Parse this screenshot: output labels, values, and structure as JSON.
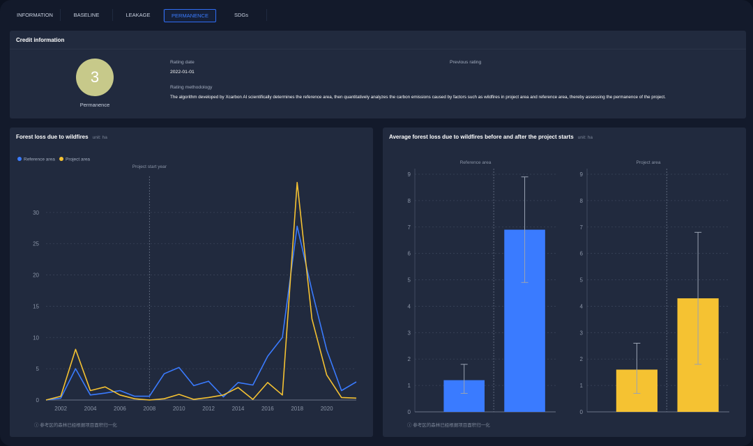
{
  "tabs": [
    {
      "label": "INFORMATION",
      "active": false
    },
    {
      "label": "BASELINE",
      "active": false
    },
    {
      "label": "LEAKAGE",
      "active": false
    },
    {
      "label": "PERMANENCE",
      "active": true
    },
    {
      "label": "SDGs",
      "active": false
    }
  ],
  "credit": {
    "title": "Credit information",
    "score": "3",
    "score_label": "Permanence",
    "rating_date_label": "Rating date",
    "rating_date": "2022-01-01",
    "previous_rating_label": "Previous rating",
    "methodology_label": "Rating methodology",
    "methodology_text": "The algorithm developed by Xcarbon AI scientifically determines the reference area, then quantitatively analyzes the carbon emissions caused by factors such as wildfires in project area and reference area, thereby assessing the permanence of the project."
  },
  "forest_panel": {
    "title": "Forest loss due to wildfires",
    "unit": "unit: ha",
    "footnote": "ⓘ 参考区的森林已经根据项目面积归一化"
  },
  "avg_panel": {
    "title": "Average forest loss due to wildfires before and after the project starts",
    "unit": "unit: ha",
    "footnote": "ⓘ 参考区的森林已经根据项目面积归一化"
  },
  "colors": {
    "reference": "#3a7bff",
    "project": "#f5c232"
  },
  "chart_data": [
    {
      "type": "line",
      "x": [
        2001,
        2002,
        2003,
        2004,
        2005,
        2006,
        2007,
        2008,
        2009,
        2010,
        2011,
        2012,
        2013,
        2014,
        2015,
        2016,
        2017,
        2018,
        2019,
        2020,
        2021,
        2022
      ],
      "xticks": [
        2002,
        2004,
        2006,
        2008,
        2010,
        2012,
        2014,
        2016,
        2018,
        2020
      ],
      "yticks": [
        0,
        5,
        10,
        15,
        20,
        25,
        30
      ],
      "ylim": [
        0,
        35
      ],
      "annotation": {
        "x": 2008,
        "label": "Project start year"
      },
      "series": [
        {
          "name": "Reference area",
          "color": "#3a7bff",
          "values": [
            0,
            0.3,
            5,
            0.8,
            1.1,
            1.5,
            0.6,
            0.6,
            4.2,
            5.2,
            2.3,
            3,
            0.5,
            2.8,
            2.4,
            7,
            10,
            27.8,
            17.5,
            8,
            1.5,
            2.9
          ]
        },
        {
          "name": "Project area",
          "color": "#f5c232",
          "values": [
            0,
            0.6,
            8.1,
            1.5,
            2.1,
            0.8,
            0.2,
            0,
            0.2,
            0.9,
            0.1,
            0.4,
            0.8,
            2,
            0.1,
            2.8,
            0.8,
            34.8,
            13,
            4,
            0.4,
            0.3
          ]
        }
      ]
    },
    {
      "type": "bar",
      "title": "Reference area",
      "yticks": [
        0,
        1,
        2,
        3,
        4,
        5,
        6,
        7,
        8,
        9
      ],
      "ylim": [
        0,
        9
      ],
      "color": "#3a7bff",
      "values": [
        1.2,
        6.9
      ],
      "errors": [
        [
          0.7,
          1.8
        ],
        [
          4.9,
          8.9
        ]
      ]
    },
    {
      "type": "bar",
      "title": "Project area",
      "yticks": [
        0,
        1,
        2,
        3,
        4,
        5,
        6,
        7,
        8,
        9
      ],
      "ylim": [
        0,
        9
      ],
      "color": "#f5c232",
      "values": [
        1.6,
        4.3
      ],
      "errors": [
        [
          0.7,
          2.6
        ],
        [
          1.8,
          6.8
        ]
      ]
    }
  ]
}
